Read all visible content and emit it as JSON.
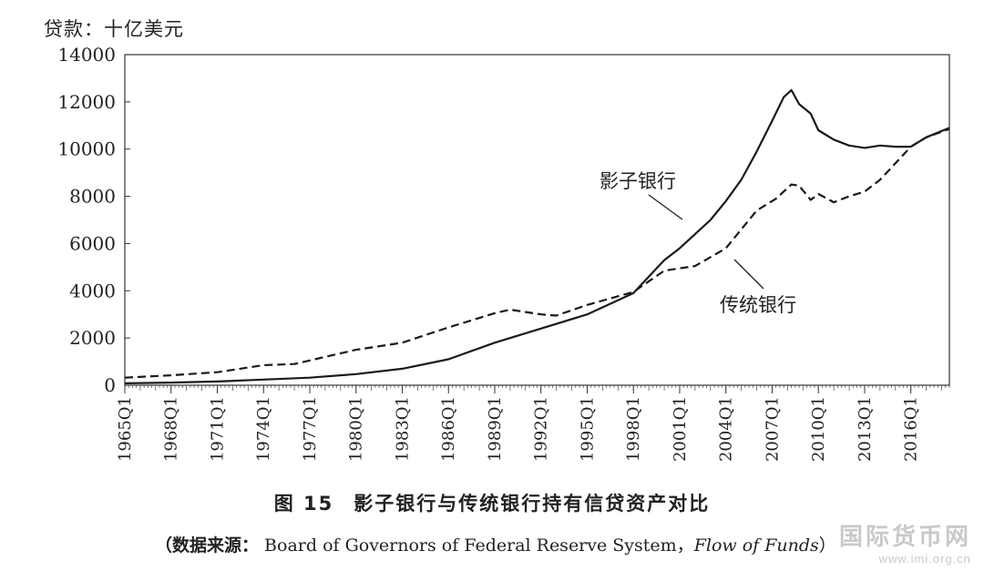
{
  "chart_data": {
    "type": "line",
    "unit_label": "贷款：十亿美元",
    "ylim": [
      0,
      14000
    ],
    "y_ticks": [
      0,
      2000,
      4000,
      6000,
      8000,
      10000,
      12000,
      14000
    ],
    "x_tick_labels": [
      "1965Q1",
      "1968Q1",
      "1971Q1",
      "1974Q1",
      "1977Q1",
      "1980Q1",
      "1983Q1",
      "1986Q1",
      "1989Q1",
      "1992Q1",
      "1995Q1",
      "1998Q1",
      "2001Q1",
      "2004Q1",
      "2007Q1",
      "2010Q1",
      "2013Q1",
      "2016Q1"
    ],
    "xlim": [
      1965.0,
      2018.5
    ],
    "grid": false,
    "legend": "inline labels",
    "series": [
      {
        "name": "影子银行",
        "style": "solid",
        "points": [
          [
            1965,
            80
          ],
          [
            1968,
            110
          ],
          [
            1971,
            160
          ],
          [
            1974,
            240
          ],
          [
            1977,
            320
          ],
          [
            1980,
            470
          ],
          [
            1983,
            700
          ],
          [
            1986,
            1100
          ],
          [
            1989,
            1800
          ],
          [
            1992,
            2400
          ],
          [
            1995,
            3000
          ],
          [
            1998,
            3900
          ],
          [
            1999,
            4600
          ],
          [
            2000,
            5300
          ],
          [
            2001,
            5800
          ],
          [
            2003,
            7000
          ],
          [
            2004,
            7800
          ],
          [
            2005,
            8700
          ],
          [
            2006,
            9900
          ],
          [
            2007,
            11200
          ],
          [
            2007.75,
            12200
          ],
          [
            2008.25,
            12500
          ],
          [
            2008.75,
            11900
          ],
          [
            2009.5,
            11500
          ],
          [
            2010,
            10800
          ],
          [
            2011,
            10400
          ],
          [
            2012,
            10150
          ],
          [
            2013,
            10050
          ],
          [
            2014,
            10150
          ],
          [
            2015,
            10100
          ],
          [
            2016,
            10100
          ],
          [
            2017,
            10500
          ],
          [
            2018.5,
            10900
          ]
        ]
      },
      {
        "name": "传统银行",
        "style": "dashed",
        "points": [
          [
            1965,
            320
          ],
          [
            1968,
            420
          ],
          [
            1971,
            550
          ],
          [
            1974,
            850
          ],
          [
            1976,
            900
          ],
          [
            1977,
            1050
          ],
          [
            1980,
            1500
          ],
          [
            1983,
            1800
          ],
          [
            1986,
            2450
          ],
          [
            1989,
            3050
          ],
          [
            1990,
            3200
          ],
          [
            1992,
            3000
          ],
          [
            1993,
            2950
          ],
          [
            1995,
            3400
          ],
          [
            1998,
            3950
          ],
          [
            2000,
            4850
          ],
          [
            2002,
            5050
          ],
          [
            2004,
            5800
          ],
          [
            2006,
            7400
          ],
          [
            2007.25,
            7900
          ],
          [
            2008.25,
            8500
          ],
          [
            2008.75,
            8450
          ],
          [
            2009.5,
            7850
          ],
          [
            2010,
            8100
          ],
          [
            2011,
            7750
          ],
          [
            2012,
            8000
          ],
          [
            2013,
            8200
          ],
          [
            2014,
            8700
          ],
          [
            2015,
            9400
          ],
          [
            2016,
            10100
          ],
          [
            2017,
            10500
          ],
          [
            2018.5,
            10850
          ]
        ]
      }
    ],
    "annotations": [
      "影子银行",
      "传统银行"
    ]
  },
  "caption": {
    "number": "图 15",
    "title": "影子银行与传统银行持有信贷资产对比"
  },
  "source": {
    "prefix": "（数据来源：",
    "text": " Board of Governors of Federal Reserve System，",
    "italic": "Flow of Funds",
    "suffix": "）"
  },
  "watermark": {
    "cn": "国际货币网",
    "url": "www.imi.org.cn"
  }
}
